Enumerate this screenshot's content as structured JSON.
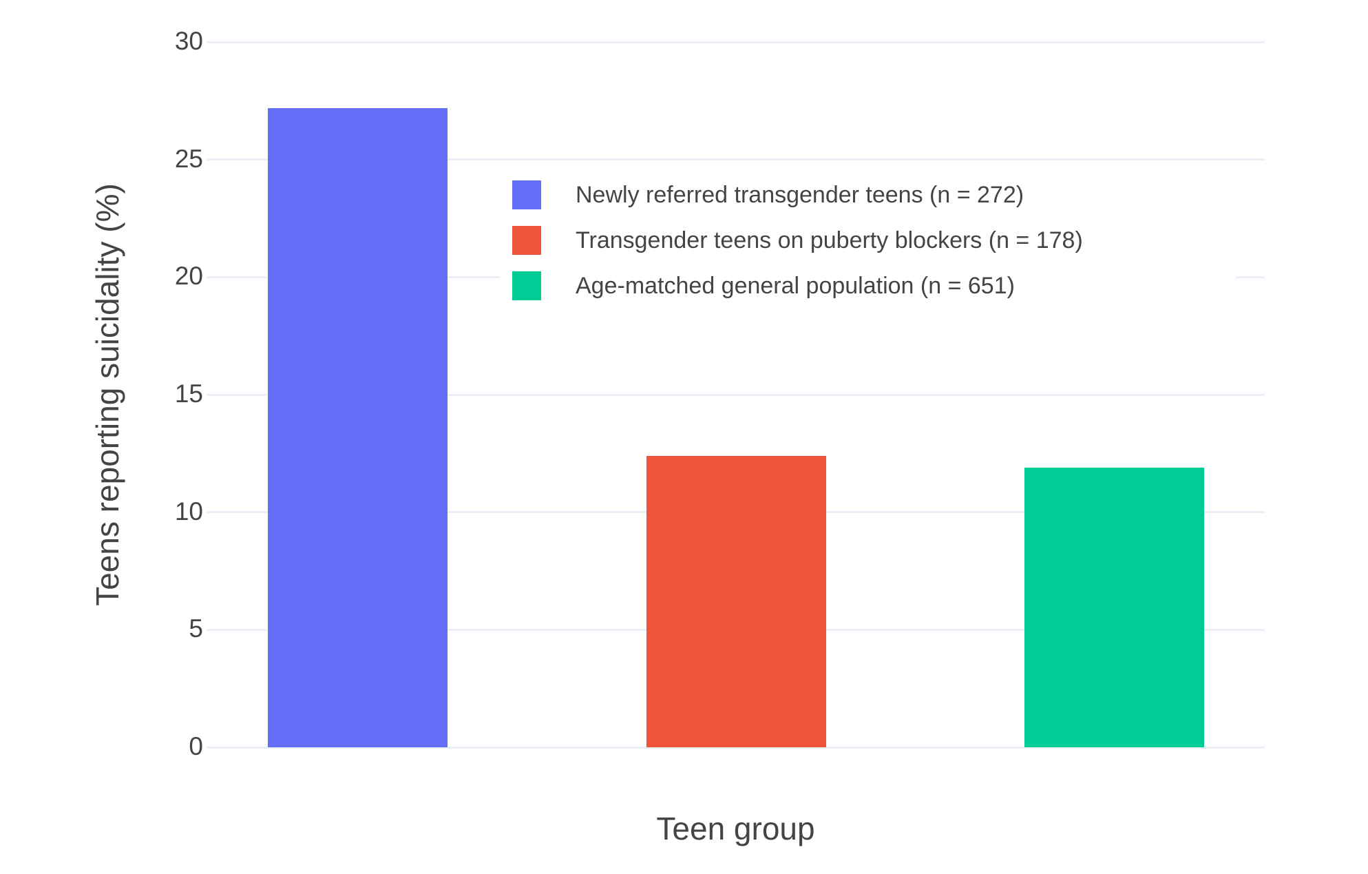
{
  "chart_data": {
    "type": "bar",
    "title": "",
    "xlabel": "Teen group",
    "ylabel": "Teens reporting suicidality (%)",
    "categories": [
      "Newly referred transgender teens (n = 272)",
      "Transgender teens on puberty blockers (n = 178)",
      "Age-matched general population (n = 651)"
    ],
    "values": [
      27.2,
      12.4,
      11.9
    ],
    "series": [
      {
        "label": "Newly referred transgender teens (n = 272)",
        "value": 27.2,
        "color": "#636EFA"
      },
      {
        "label": "Transgender teens on puberty blockers (n = 178)",
        "value": 12.4,
        "color": "#EF553B"
      },
      {
        "label": "Age-matched general population (n = 651)",
        "value": 11.9,
        "color": "#00CC96"
      }
    ],
    "ylim": [
      0,
      30
    ],
    "yticks": [
      0,
      5,
      10,
      15,
      20,
      25,
      30
    ],
    "x_tick_labels_shown": false,
    "grid": true,
    "legend_position": "inside-top-center",
    "background_color": "#FFFFFF",
    "grid_color": "#EBF0F8",
    "text_color": "#444444"
  }
}
